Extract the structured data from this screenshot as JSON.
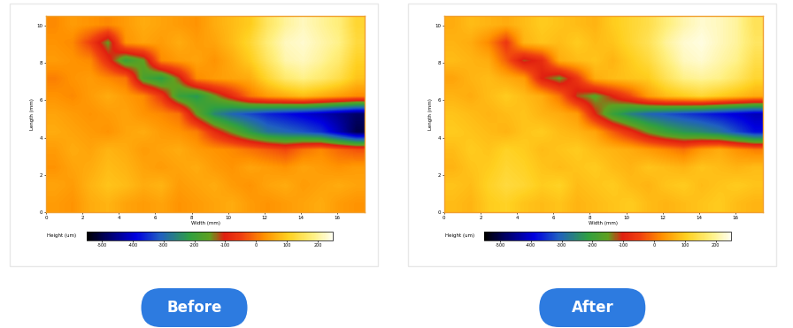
{
  "chart_data": [
    {
      "type": "heatmap",
      "title": "Before",
      "x_label": "Width (mm)",
      "y_label": "Length (mm)",
      "xlim": [
        0,
        17.5
      ],
      "ylim": [
        0,
        10.5
      ],
      "xticks": [
        0,
        2,
        4,
        6,
        8,
        10,
        12,
        14,
        16
      ],
      "yticks": [
        0,
        2,
        4,
        6,
        8,
        10
      ],
      "colorbar_label": "Height (um)",
      "colorbar_range": [
        -550,
        250
      ],
      "colorbar_ticks": [
        -500,
        -400,
        -300,
        -200,
        -100,
        0,
        100,
        200
      ],
      "cells": [
        [
          20,
          40,
          30,
          20,
          40,
          60,
          50,
          40,
          30,
          60,
          80,
          100,
          160,
          200,
          220,
          200,
          180,
          120
        ],
        [
          30,
          20,
          -50,
          -150,
          30,
          50,
          40,
          60,
          40,
          50,
          80,
          120,
          180,
          220,
          230,
          210,
          190,
          130
        ],
        [
          40,
          30,
          20,
          -80,
          -200,
          -150,
          20,
          40,
          50,
          30,
          60,
          100,
          160,
          210,
          220,
          200,
          170,
          110
        ],
        [
          10,
          30,
          40,
          20,
          0,
          -180,
          -220,
          -120,
          20,
          40,
          50,
          60,
          120,
          170,
          190,
          170,
          140,
          90
        ],
        [
          30,
          20,
          40,
          60,
          40,
          20,
          -60,
          -200,
          -230,
          -150,
          -80,
          0,
          40,
          60,
          80,
          60,
          40,
          20
        ],
        [
          50,
          40,
          30,
          40,
          50,
          30,
          20,
          0,
          -150,
          -250,
          -300,
          -330,
          -360,
          -380,
          -400,
          -420,
          -450,
          -480
        ],
        [
          60,
          50,
          40,
          30,
          50,
          60,
          40,
          30,
          10,
          -80,
          -150,
          -220,
          -280,
          -300,
          -320,
          -350,
          -420,
          -500
        ],
        [
          40,
          60,
          50,
          70,
          60,
          40,
          50,
          60,
          40,
          30,
          20,
          0,
          -20,
          -40,
          0,
          20,
          -10,
          -30
        ],
        [
          30,
          50,
          60,
          80,
          70,
          50,
          40,
          50,
          60,
          40,
          30,
          50,
          40,
          30,
          50,
          40,
          30,
          40
        ],
        [
          50,
          40,
          70,
          90,
          80,
          60,
          70,
          40,
          50,
          60,
          40,
          30,
          50,
          60,
          40,
          50,
          60,
          50
        ],
        [
          40,
          30,
          60,
          70,
          50,
          40,
          50,
          30,
          40,
          50,
          60,
          40,
          30,
          40,
          50,
          60,
          40,
          30
        ]
      ]
    },
    {
      "type": "heatmap",
      "title": "After",
      "x_label": "Width (mm)",
      "y_label": "Length (mm)",
      "xlim": [
        0,
        17.5
      ],
      "ylim": [
        0,
        10.5
      ],
      "xticks": [
        0,
        2,
        4,
        6,
        8,
        10,
        12,
        14,
        16
      ],
      "yticks": [
        0,
        2,
        4,
        6,
        8,
        10
      ],
      "colorbar_label": "Height (um)",
      "colorbar_range": [
        -550,
        250
      ],
      "colorbar_ticks": [
        -500,
        -400,
        -300,
        -200,
        -100,
        0,
        100,
        200
      ],
      "cells": [
        [
          60,
          80,
          70,
          60,
          80,
          100,
          90,
          80,
          70,
          100,
          120,
          140,
          180,
          210,
          230,
          220,
          200,
          150
        ],
        [
          70,
          60,
          20,
          -60,
          70,
          90,
          80,
          100,
          80,
          90,
          120,
          150,
          200,
          230,
          240,
          220,
          200,
          160
        ],
        [
          80,
          70,
          60,
          -20,
          -120,
          -80,
          60,
          80,
          90,
          70,
          100,
          130,
          180,
          220,
          230,
          210,
          190,
          140
        ],
        [
          50,
          70,
          80,
          60,
          40,
          -100,
          -150,
          -60,
          60,
          80,
          90,
          100,
          150,
          190,
          200,
          190,
          160,
          120
        ],
        [
          70,
          60,
          80,
          100,
          80,
          60,
          0,
          -120,
          -160,
          -100,
          -40,
          40,
          80,
          100,
          120,
          100,
          80,
          60
        ],
        [
          90,
          80,
          70,
          80,
          90,
          70,
          60,
          40,
          -100,
          -200,
          -260,
          -300,
          -320,
          -340,
          -360,
          -380,
          -400,
          -420
        ],
        [
          100,
          90,
          80,
          70,
          90,
          100,
          80,
          70,
          50,
          -20,
          -80,
          -150,
          -200,
          -230,
          -250,
          -280,
          -330,
          -380
        ],
        [
          80,
          100,
          90,
          110,
          100,
          80,
          90,
          100,
          80,
          70,
          60,
          40,
          20,
          0,
          40,
          60,
          30,
          10
        ],
        [
          70,
          90,
          100,
          120,
          110,
          90,
          80,
          90,
          100,
          80,
          70,
          90,
          80,
          70,
          90,
          80,
          70,
          80
        ],
        [
          90,
          80,
          110,
          130,
          120,
          100,
          110,
          80,
          90,
          100,
          80,
          70,
          90,
          100,
          80,
          90,
          100,
          90
        ],
        [
          80,
          70,
          100,
          110,
          90,
          80,
          90,
          70,
          80,
          90,
          100,
          80,
          70,
          80,
          90,
          100,
          80,
          70
        ]
      ]
    }
  ]
}
